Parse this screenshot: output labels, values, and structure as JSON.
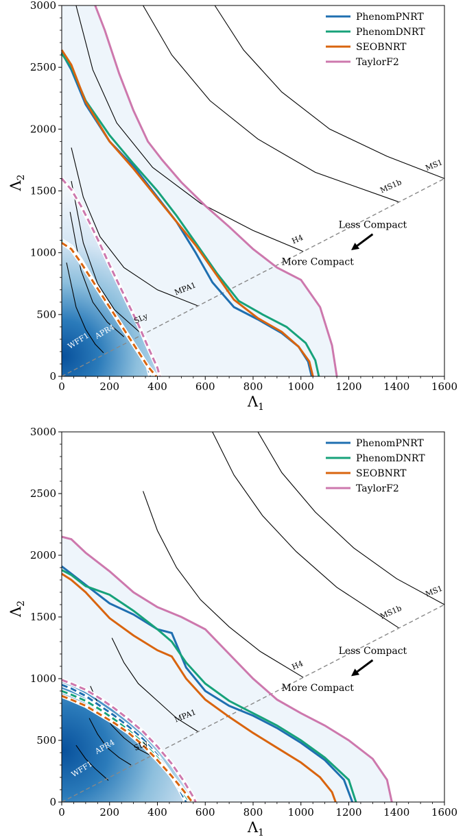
{
  "chart_data": [
    {
      "type": "line",
      "xlabel": "Λ",
      "xlabel_sub": "1",
      "ylabel": "Λ",
      "ylabel_sub": "2",
      "xlim": [
        0,
        1600
      ],
      "ylim": [
        0,
        3000
      ],
      "xticks": [
        0,
        200,
        400,
        600,
        800,
        1000,
        1200,
        1400,
        1600
      ],
      "yticks": [
        0,
        500,
        1000,
        1500,
        2000,
        2500,
        3000
      ],
      "legend_position": "top-right",
      "colors": {
        "PhenomPNRT": "#1f6fb0",
        "PhenomDNRT": "#17a27a",
        "SEOBNRT": "#d9640e",
        "TaylorF2": "#cd78ad"
      },
      "density_peak": [
        20,
        200
      ],
      "equal_mass_line": {
        "x": [
          0,
          1600
        ],
        "y": [
          0,
          1600
        ]
      },
      "annotations": [
        {
          "text": "Less Compact",
          "x": 1300,
          "y": 1200
        },
        {
          "text": "More Compact",
          "x": 1070,
          "y": 900
        }
      ],
      "arrow": {
        "from": [
          1300,
          1150
        ],
        "to": [
          1210,
          1020
        ]
      },
      "series": [
        {
          "name": "PhenomPNRT",
          "x": [
            0,
            40,
            100,
            200,
            300,
            400,
            480,
            560,
            630,
            720,
            820,
            920,
            990,
            1030,
            1045
          ],
          "y": [
            2620,
            2480,
            2200,
            1900,
            1700,
            1450,
            1250,
            1000,
            760,
            560,
            460,
            350,
            240,
            120,
            0
          ],
          "ci90_x": [
            0,
            40,
            80,
            120,
            160,
            200,
            240,
            280,
            320,
            360,
            370
          ],
          "ci90_y": [
            1100,
            1050,
            940,
            810,
            680,
            560,
            440,
            320,
            200,
            80,
            0
          ]
        },
        {
          "name": "PhenomDNRT",
          "x": [
            0,
            40,
            100,
            200,
            300,
            400,
            480,
            560,
            650,
            740,
            840,
            940,
            1020,
            1060,
            1075
          ],
          "y": [
            2610,
            2500,
            2230,
            1950,
            1720,
            1500,
            1300,
            1080,
            830,
            610,
            500,
            400,
            270,
            130,
            0
          ],
          "ci90_x": [
            0,
            40,
            80,
            120,
            160,
            200,
            240,
            280,
            320,
            360,
            385
          ],
          "ci90_y": [
            1090,
            1040,
            930,
            800,
            680,
            560,
            440,
            320,
            200,
            80,
            0
          ]
        },
        {
          "name": "SEOBNRT",
          "x": [
            0,
            40,
            100,
            200,
            300,
            400,
            480,
            560,
            640,
            720,
            820,
            920,
            990,
            1035,
            1050
          ],
          "y": [
            2640,
            2520,
            2220,
            1900,
            1680,
            1440,
            1250,
            1060,
            840,
            620,
            470,
            360,
            240,
            120,
            0
          ],
          "ci90_x": [
            0,
            40,
            80,
            120,
            160,
            200,
            240,
            280,
            320,
            360,
            395
          ],
          "ci90_y": [
            1080,
            1030,
            920,
            800,
            680,
            560,
            440,
            320,
            200,
            80,
            0
          ]
        },
        {
          "name": "TaylorF2",
          "x": [
            140,
            180,
            240,
            300,
            360,
            420,
            500,
            600,
            700,
            800,
            900,
            1000,
            1080,
            1130,
            1150
          ],
          "y": [
            3000,
            2800,
            2450,
            2150,
            1900,
            1750,
            1570,
            1380,
            1210,
            1030,
            880,
            780,
            560,
            250,
            0
          ],
          "ci90_x": [
            0,
            40,
            80,
            120,
            160,
            200,
            240,
            280,
            320,
            360,
            400,
            410
          ],
          "ci90_y": [
            1600,
            1510,
            1380,
            1230,
            1070,
            900,
            740,
            580,
            420,
            240,
            70,
            0
          ]
        }
      ],
      "eos_curves": [
        {
          "name": "WFF1",
          "x": [
            20,
            60,
            100,
            140,
            175
          ],
          "y": [
            920,
            560,
            380,
            260,
            190
          ]
        },
        {
          "name": "APR4",
          "x": [
            35,
            80,
            130,
            190,
            260
          ],
          "y": [
            1330,
            860,
            600,
            440,
            320
          ]
        },
        {
          "name": "SLy",
          "x": [
            40,
            90,
            150,
            220,
            330
          ],
          "y": [
            1580,
            1080,
            750,
            540,
            350
          ]
        },
        {
          "name": "MPA1",
          "x": [
            40,
            90,
            160,
            260,
            400,
            570
          ],
          "y": [
            1850,
            1450,
            1130,
            880,
            700,
            570
          ]
        },
        {
          "name": "H4",
          "x": [
            60,
            130,
            230,
            380,
            580,
            800,
            1010
          ],
          "y": [
            3000,
            2480,
            2050,
            1690,
            1400,
            1180,
            1010
          ]
        },
        {
          "name": "MS1b",
          "x": [
            340,
            460,
            620,
            820,
            1060,
            1410
          ],
          "y": [
            3000,
            2600,
            2230,
            1920,
            1650,
            1410
          ]
        },
        {
          "name": "MS1",
          "x": [
            640,
            760,
            920,
            1120,
            1360,
            1600
          ],
          "y": [
            3000,
            2640,
            2300,
            2000,
            1780,
            1600
          ]
        }
      ],
      "eos_label_positions": [
        {
          "name": "WFF1",
          "x": 75,
          "y": 270,
          "angle": -32
        },
        {
          "name": "APR4",
          "x": 185,
          "y": 345,
          "angle": -30
        },
        {
          "name": "SLy",
          "x": 335,
          "y": 450,
          "angle": -25
        },
        {
          "name": "MPA1",
          "x": 520,
          "y": 690,
          "angle": -22
        },
        {
          "name": "H4",
          "x": 990,
          "y": 1090,
          "angle": -24
        },
        {
          "name": "MS1b",
          "x": 1380,
          "y": 1520,
          "angle": -24
        },
        {
          "name": "MS1",
          "x": 1560,
          "y": 1690,
          "angle": -22
        }
      ]
    },
    {
      "type": "line",
      "xlabel": "Λ",
      "xlabel_sub": "1",
      "ylabel": "Λ",
      "ylabel_sub": "2",
      "xlim": [
        0,
        1600
      ],
      "ylim": [
        0,
        3000
      ],
      "xticks": [
        0,
        200,
        400,
        600,
        800,
        1000,
        1200,
        1400,
        1600
      ],
      "yticks": [
        0,
        500,
        1000,
        1500,
        2000,
        2500,
        3000
      ],
      "legend_position": "top-right",
      "colors": {
        "PhenomPNRT": "#1f6fb0",
        "PhenomDNRT": "#17a27a",
        "SEOBNRT": "#d9640e",
        "TaylorF2": "#cd78ad"
      },
      "density_peak": [
        20,
        450
      ],
      "equal_mass_line": {
        "x": [
          0,
          1600
        ],
        "y": [
          0,
          1600
        ]
      },
      "annotations": [
        {
          "text": "Less Compact",
          "x": 1300,
          "y": 1200
        },
        {
          "text": "More Compact",
          "x": 1070,
          "y": 900
        }
      ],
      "arrow": {
        "from": [
          1300,
          1150
        ],
        "to": [
          1210,
          1020
        ]
      },
      "series": [
        {
          "name": "PhenomPNRT",
          "x": [
            0,
            40,
            100,
            200,
            300,
            400,
            460,
            520,
            600,
            700,
            800,
            900,
            1000,
            1100,
            1180,
            1215
          ],
          "y": [
            1910,
            1850,
            1760,
            1610,
            1520,
            1400,
            1370,
            1090,
            900,
            780,
            700,
            600,
            480,
            340,
            180,
            0
          ],
          "ci90_x": [
            0,
            40,
            100,
            160,
            220,
            280,
            340,
            400,
            450,
            490,
            520
          ],
          "ci90_y": [
            950,
            920,
            860,
            780,
            700,
            610,
            510,
            380,
            240,
            110,
            0
          ]
        },
        {
          "name": "PhenomDNRT",
          "x": [
            0,
            40,
            100,
            200,
            300,
            400,
            460,
            520,
            600,
            700,
            800,
            900,
            1000,
            1100,
            1200,
            1230
          ],
          "y": [
            1880,
            1840,
            1750,
            1680,
            1550,
            1400,
            1300,
            1130,
            960,
            820,
            720,
            620,
            500,
            360,
            180,
            0
          ],
          "ci90_x": [
            0,
            40,
            100,
            160,
            220,
            280,
            340,
            400,
            450,
            500,
            535
          ],
          "ci90_y": [
            900,
            870,
            820,
            750,
            670,
            580,
            480,
            360,
            230,
            100,
            0
          ]
        },
        {
          "name": "SEOBNRT",
          "x": [
            0,
            40,
            100,
            200,
            300,
            400,
            460,
            520,
            600,
            700,
            800,
            900,
            1000,
            1080,
            1130,
            1145
          ],
          "y": [
            1850,
            1800,
            1700,
            1490,
            1350,
            1230,
            1180,
            1000,
            830,
            690,
            560,
            440,
            320,
            200,
            80,
            0
          ],
          "ci90_x": [
            0,
            40,
            100,
            160,
            220,
            280,
            340,
            400,
            460,
            510,
            545
          ],
          "ci90_y": [
            860,
            830,
            780,
            710,
            640,
            560,
            460,
            340,
            210,
            90,
            0
          ]
        },
        {
          "name": "TaylorF2",
          "x": [
            0,
            40,
            100,
            200,
            300,
            400,
            500,
            600,
            700,
            800,
            900,
            1000,
            1100,
            1200,
            1300,
            1360,
            1380
          ],
          "y": [
            2150,
            2130,
            2020,
            1870,
            1700,
            1580,
            1500,
            1400,
            1200,
            1000,
            830,
            720,
            620,
            500,
            350,
            180,
            0
          ],
          "ci90_x": [
            0,
            40,
            100,
            160,
            220,
            280,
            340,
            400,
            460,
            510,
            550,
            560
          ],
          "ci90_y": [
            990,
            960,
            910,
            840,
            760,
            670,
            570,
            450,
            310,
            170,
            40,
            0
          ]
        }
      ],
      "eos_curves": [
        {
          "name": "WFF1",
          "x": [
            60,
            100,
            140,
            175,
            195
          ],
          "y": [
            460,
            350,
            270,
            210,
            175
          ]
        },
        {
          "name": "APR4",
          "x": [
            115,
            150,
            190,
            240,
            290
          ],
          "y": [
            680,
            550,
            440,
            360,
            300
          ]
        },
        {
          "name": "SLy",
          "x": [
            120,
            160,
            210,
            260,
            320,
            390
          ],
          "y": [
            940,
            760,
            620,
            520,
            430,
            360
          ]
        },
        {
          "name": "MPA1",
          "x": [
            210,
            260,
            320,
            400,
            480,
            570
          ],
          "y": [
            1330,
            1130,
            960,
            820,
            680,
            570
          ]
        },
        {
          "name": "H4",
          "x": [
            340,
            400,
            480,
            580,
            700,
            830,
            1010
          ],
          "y": [
            2520,
            2200,
            1900,
            1640,
            1420,
            1220,
            1010
          ]
        },
        {
          "name": "MS1b",
          "x": [
            630,
            720,
            840,
            980,
            1150,
            1410
          ],
          "y": [
            3000,
            2650,
            2320,
            2030,
            1740,
            1410
          ]
        },
        {
          "name": "MS1",
          "x": [
            820,
            920,
            1060,
            1220,
            1400,
            1600
          ],
          "y": [
            3000,
            2670,
            2350,
            2060,
            1810,
            1600
          ]
        }
      ],
      "eos_label_positions": [
        {
          "name": "WFF1",
          "x": 90,
          "y": 250,
          "angle": -32
        },
        {
          "name": "APR4",
          "x": 185,
          "y": 430,
          "angle": -30
        },
        {
          "name": "SLy",
          "x": 335,
          "y": 440,
          "angle": -25
        },
        {
          "name": "MPA1",
          "x": 520,
          "y": 680,
          "angle": -22
        },
        {
          "name": "H4",
          "x": 990,
          "y": 1090,
          "angle": -24
        },
        {
          "name": "MS1b",
          "x": 1380,
          "y": 1520,
          "angle": -24
        },
        {
          "name": "MS1",
          "x": 1560,
          "y": 1690,
          "angle": -22
        }
      ]
    }
  ]
}
